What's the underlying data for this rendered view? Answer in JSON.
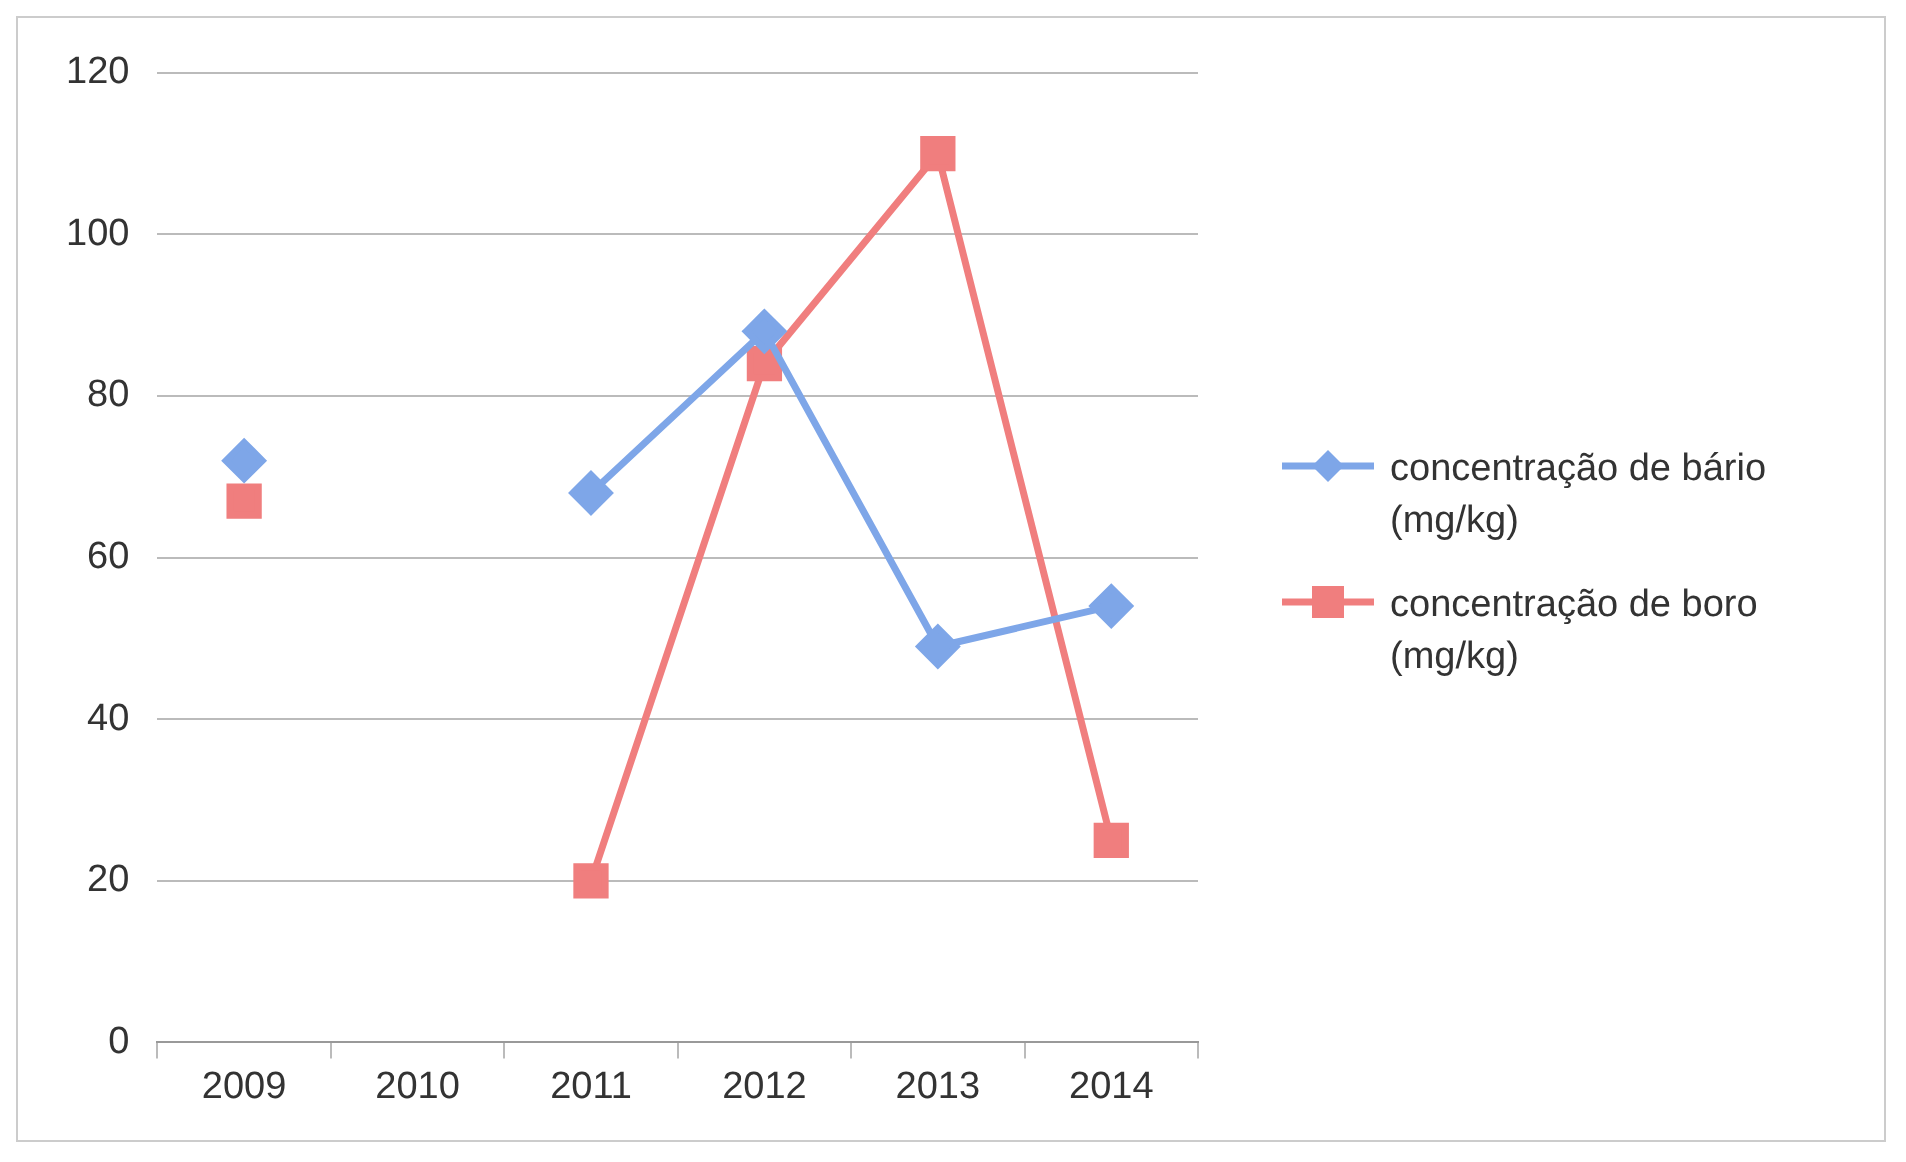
{
  "chart_data": {
    "type": "line",
    "categories": [
      "2009",
      "2010",
      "2011",
      "2012",
      "2013",
      "2014"
    ],
    "series": [
      {
        "name": "concentração de bário (mg/kg)",
        "color": "#7ea6e8",
        "marker": "diamond",
        "values": [
          72,
          null,
          68,
          88,
          49,
          54
        ]
      },
      {
        "name": "concentração de boro (mg/kg)",
        "color": "#f07e7e",
        "marker": "square",
        "values": [
          67,
          null,
          20,
          84,
          110,
          25
        ]
      }
    ],
    "ylim": [
      0,
      120
    ],
    "yticks": [
      0,
      20,
      40,
      60,
      80,
      100,
      120
    ],
    "grid": "y",
    "legend": "right"
  }
}
